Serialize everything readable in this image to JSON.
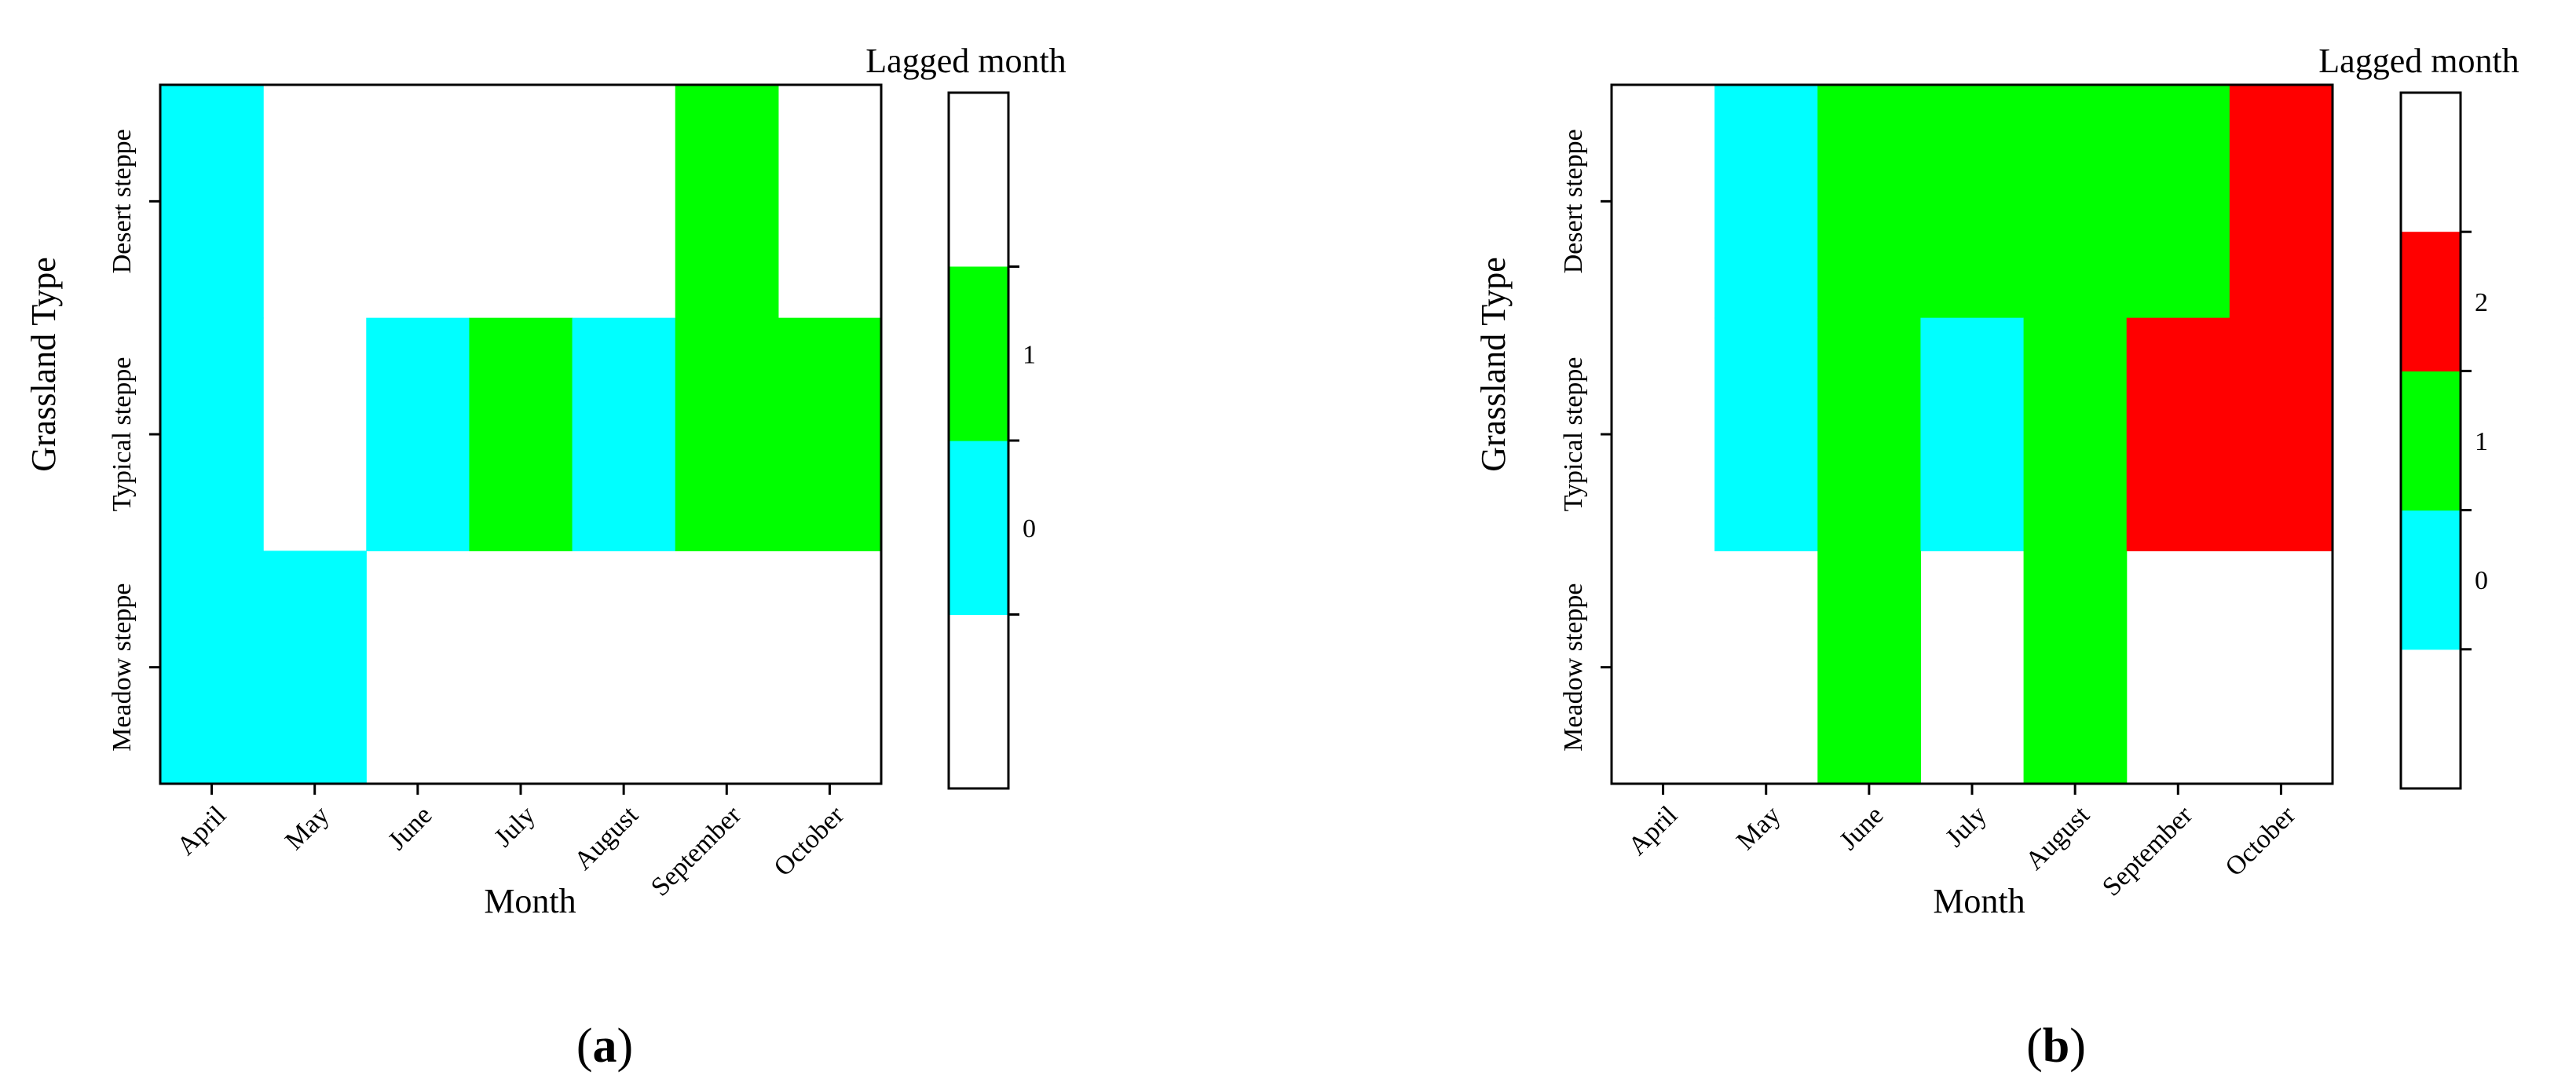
{
  "chart_data": [
    {
      "type": "heatmap",
      "panel_label": "a",
      "xlabel": "Month",
      "ylabel": "Grassland Type",
      "categories": [
        "April",
        "May",
        "June",
        "July",
        "August",
        "September",
        "October"
      ],
      "rows": [
        "Desert steppe",
        "Typical steppe",
        "Meadow steppe"
      ],
      "values": [
        [
          0,
          null,
          null,
          null,
          null,
          1,
          null
        ],
        [
          0,
          null,
          0,
          1,
          0,
          1,
          1
        ],
        [
          0,
          0,
          null,
          null,
          null,
          null,
          null
        ]
      ],
      "legend": {
        "title": "Lagged month",
        "levels": [
          {
            "value": 0,
            "label": "0",
            "color": "#00ffff"
          },
          {
            "value": 1,
            "label": "1",
            "color": "#00ff00"
          }
        ]
      }
    },
    {
      "type": "heatmap",
      "panel_label": "b",
      "xlabel": "Month",
      "ylabel": "Grassland Type",
      "categories": [
        "April",
        "May",
        "June",
        "July",
        "August",
        "September",
        "October"
      ],
      "rows": [
        "Desert steppe",
        "Typical steppe",
        "Meadow steppe"
      ],
      "values": [
        [
          null,
          0,
          1,
          1,
          1,
          1,
          2
        ],
        [
          null,
          0,
          1,
          0,
          1,
          2,
          2
        ],
        [
          null,
          null,
          1,
          null,
          1,
          null,
          null
        ]
      ],
      "legend": {
        "title": "Lagged month",
        "levels": [
          {
            "value": 0,
            "label": "0",
            "color": "#00ffff"
          },
          {
            "value": 1,
            "label": "1",
            "color": "#00ff00"
          },
          {
            "value": 2,
            "label": "2",
            "color": "#ff0000"
          }
        ]
      }
    }
  ]
}
